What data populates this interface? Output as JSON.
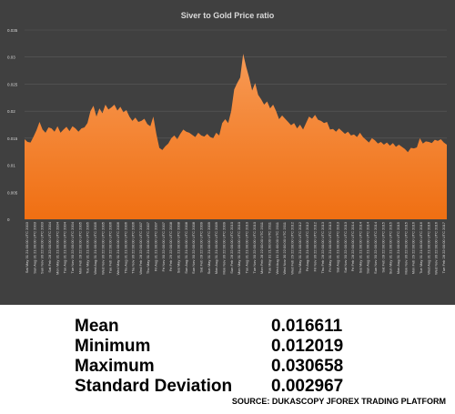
{
  "chart_data": {
    "type": "area",
    "title": "Siver to Gold  Price ratio",
    "ylim": [
      0,
      0.035
    ],
    "yticks": [
      "0",
      "0.005",
      "0.01",
      "0.015",
      "0.02",
      "0.025",
      "0.03",
      "0.035"
    ],
    "ytick_values": [
      0,
      0.005,
      0.01,
      0.015,
      0.02,
      0.025,
      0.03,
      0.035
    ],
    "grid": true,
    "colors": {
      "fill": "#f47b20",
      "fill_light": "#f79a55",
      "background": "#404040",
      "gridline": "#5a5a5a",
      "text": "#d9d9d9"
    },
    "x_labels": [
      "Sat May 31 21:00:00 UTC 2003",
      "Sun Aug 31 21:00:00 UTC 2003",
      "Sun Nov 30 22:00:00 UTC 2003",
      "Sat Feb 28 22:00:00 UTC 2004",
      "Mon May 31 21:00:00 UTC 2004",
      "Tue Aug 31 21:00:00 UTC 2004",
      "Tue Nov 30 22:00:00 UTC 2004",
      "Mon Feb 28 22:00:00 UTC 2005",
      "Tue May 31 21:00:00 UTC 2005",
      "Wed Aug 31 21:00:00 UTC 2005",
      "Wed Nov 30 22:00:00 UTC 2005",
      "Tue Feb 28 22:00:00 UTC 2006",
      "Wed May 31 21:00:00 UTC 2006",
      "Thu Aug 31 21:00:00 UTC 2006",
      "Thu Nov 30 22:00:00 UTC 2006",
      "Wed Feb 28 22:00:00 UTC 2007",
      "Thu May 31 21:00:00 UTC 2007",
      "Fri Aug 31 21:00:00 UTC 2007",
      "Fri Nov 30 22:00:00 UTC 2007",
      "Fri Feb 29 22:00:00 UTC 2008",
      "Sat May 31 21:00:00 UTC 2008",
      "Sun Aug 31 21:00:00 UTC 2008",
      "Sun Nov 30 22:00:00 UTC 2008",
      "Sat Feb 28 22:00:00 UTC 2009",
      "Sun May 31 21:00:00 UTC 2009",
      "Mon Aug 31 21:00:00 UTC 2009",
      "Mon Nov 30 22:00:00 UTC 2009",
      "Sun Feb 28 22:00:00 UTC 2010",
      "Mon May 31 21:00:00 UTC 2010",
      "Tue Aug 31 21:00:00 UTC 2010",
      "Tue Nov 30 22:00:00 UTC 2010",
      "Mon Feb 28 22:00:00 UTC 2011",
      "Tue May 31 21:00:00 UTC 2011",
      "Wed Aug 31 21:00:00 UTC 2011",
      "Wed Nov 30 22:00:00 UTC 2011",
      "Wed Feb 29 22:00:00 UTC 2012",
      "Thu May 31 21:00:00 UTC 2012",
      "Fri Aug 31 21:00:00 UTC 2012",
      "Fri Nov 30 22:00:00 UTC 2012",
      "Thu Feb 28 22:00:00 UTC 2013",
      "Fri May 31 21:00:00 UTC 2013",
      "Sat Aug 31 21:00:00 UTC 2013",
      "Sat Nov 30 22:00:00 UTC 2013",
      "Fri Feb 28 22:00:00 UTC 2014",
      "Sat May 31 21:00:00 UTC 2014",
      "Sun Aug 31 21:00:00 UTC 2014",
      "Sun Nov 30 22:00:00 UTC 2014",
      "Sat Feb 28 22:00:00 UTC 2015",
      "Sun May 31 21:00:00 UTC 2015",
      "Mon Aug 31 21:00:00 UTC 2015",
      "Mon Nov 30 22:00:00 UTC 2015",
      "Mon Feb 29 22:00:00 UTC 2016",
      "Tue May 31 21:00:00 UTC 2016",
      "Wed Aug 31 21:00:00 UTC 2016",
      "Wed Nov 30 22:00:00 UTC 2016",
      "Tue Feb 28 22:00:00 UTC 2017"
    ],
    "values": [
      0.0148,
      0.0143,
      0.0142,
      0.0153,
      0.0165,
      0.018,
      0.0166,
      0.016,
      0.017,
      0.0168,
      0.0162,
      0.0172,
      0.016,
      0.0166,
      0.0171,
      0.0163,
      0.0172,
      0.0168,
      0.0162,
      0.0168,
      0.017,
      0.0178,
      0.02,
      0.021,
      0.019,
      0.0205,
      0.0196,
      0.0212,
      0.0203,
      0.0207,
      0.0212,
      0.0201,
      0.0208,
      0.0198,
      0.0202,
      0.019,
      0.0182,
      0.0188,
      0.018,
      0.0182,
      0.0186,
      0.0176,
      0.0172,
      0.019,
      0.0158,
      0.0132,
      0.0128,
      0.0135,
      0.014,
      0.015,
      0.0155,
      0.0148,
      0.0158,
      0.0166,
      0.0162,
      0.016,
      0.0156,
      0.0152,
      0.016,
      0.0155,
      0.0153,
      0.0158,
      0.0152,
      0.015,
      0.016,
      0.0155,
      0.0178,
      0.0185,
      0.0178,
      0.02,
      0.024,
      0.0252,
      0.0262,
      0.0306,
      0.0282,
      0.0262,
      0.0238,
      0.0252,
      0.023,
      0.0222,
      0.0212,
      0.0218,
      0.0205,
      0.0212,
      0.02,
      0.0185,
      0.0192,
      0.0186,
      0.018,
      0.0174,
      0.0178,
      0.0168,
      0.0175,
      0.0166,
      0.0178,
      0.019,
      0.0186,
      0.0193,
      0.0184,
      0.0182,
      0.0178,
      0.018,
      0.0166,
      0.0167,
      0.0162,
      0.0168,
      0.0163,
      0.0158,
      0.0162,
      0.0155,
      0.0157,
      0.0152,
      0.016,
      0.0152,
      0.0147,
      0.0142,
      0.015,
      0.0146,
      0.014,
      0.0143,
      0.0138,
      0.0142,
      0.0136,
      0.0141,
      0.0134,
      0.0138,
      0.0134,
      0.013,
      0.0124,
      0.0132,
      0.0131,
      0.0133,
      0.015,
      0.014,
      0.0144,
      0.0143,
      0.0141,
      0.0147,
      0.0145,
      0.0148,
      0.0142,
      0.0138
    ]
  },
  "stats": [
    {
      "label": "Mean",
      "value": "0.016611"
    },
    {
      "label": "Minimum",
      "value": "0.012019"
    },
    {
      "label": "Maximum",
      "value": "0.030658"
    },
    {
      "label": "Standard Deviation",
      "value": "0.002967"
    }
  ],
  "source": "SOURCE: DUKASCOPY JFOREX TRADING PLATFORM"
}
